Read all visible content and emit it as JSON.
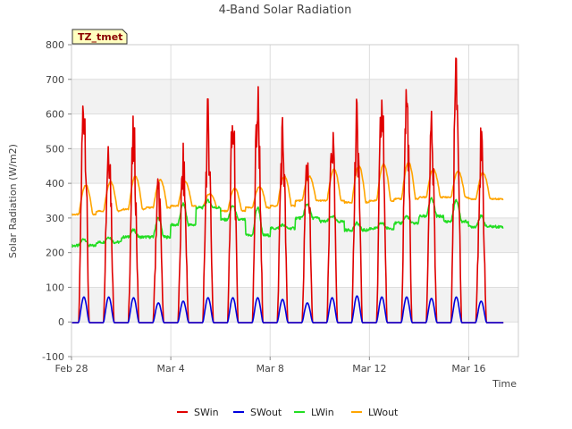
{
  "chart_data": {
    "type": "line",
    "title": "4-Band Solar Radiation",
    "xlabel": "Time",
    "ylabel": "Solar Radiation (W/m2)",
    "annotation": "TZ_tmet",
    "ylim": [
      -100,
      800
    ],
    "yticks": [
      -100,
      0,
      100,
      200,
      300,
      400,
      500,
      600,
      700,
      800
    ],
    "xlim": [
      "2021-02-28",
      "2021-03-18"
    ],
    "xticks": [
      {
        "date": "2021-02-28",
        "label": "Feb 28"
      },
      {
        "date": "2021-03-04",
        "label": "Mar 4"
      },
      {
        "date": "2021-03-08",
        "label": "Mar 8"
      },
      {
        "date": "2021-03-12",
        "label": "Mar 12"
      },
      {
        "date": "2021-03-16",
        "label": "Mar 16"
      }
    ],
    "grid": true,
    "legend_position": "bottom",
    "days": [
      "2021-02-28",
      "2021-03-01",
      "2021-03-02",
      "2021-03-03",
      "2021-03-04",
      "2021-03-05",
      "2021-03-06",
      "2021-03-07",
      "2021-03-08",
      "2021-03-09",
      "2021-03-10",
      "2021-03-11",
      "2021-03-12",
      "2021-03-13",
      "2021-03-14",
      "2021-03-15",
      "2021-03-16",
      "2021-03-17"
    ],
    "series": [
      {
        "name": "SWin",
        "color": "#e00000",
        "kind": "sw",
        "daily_peak": [
          680,
          555,
          550,
          415,
          470,
          600,
          595,
          660,
          560,
          490,
          565,
          595,
          650,
          670,
          555,
          725,
          520,
          0
        ]
      },
      {
        "name": "SWout",
        "color": "#0000dd",
        "kind": "swout",
        "daily_peak": [
          72,
          72,
          70,
          55,
          60,
          70,
          70,
          70,
          65,
          55,
          70,
          75,
          72,
          72,
          68,
          72,
          60,
          0
        ]
      },
      {
        "name": "LWin",
        "color": "#22dd22",
        "kind": "lwin",
        "daily_base": [
          220,
          230,
          245,
          245,
          280,
          330,
          295,
          250,
          270,
          300,
          290,
          265,
          270,
          285,
          305,
          290,
          275,
          275
        ],
        "daily_bump": [
          20,
          15,
          20,
          55,
          60,
          20,
          40,
          80,
          10,
          40,
          15,
          20,
          15,
          20,
          50,
          60,
          30,
          0
        ]
      },
      {
        "name": "LWout",
        "color": "#ffa500",
        "kind": "lwout",
        "daily_min": [
          310,
          320,
          325,
          330,
          335,
          330,
          320,
          330,
          335,
          350,
          350,
          345,
          350,
          355,
          360,
          360,
          355,
          355
        ],
        "daily_peak": [
          395,
          405,
          420,
          410,
          405,
          370,
          385,
          390,
          420,
          420,
          440,
          450,
          455,
          460,
          440,
          435,
          430,
          0
        ]
      }
    ]
  }
}
